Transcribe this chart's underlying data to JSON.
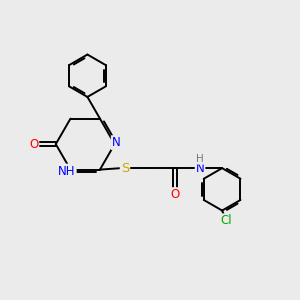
{
  "background_color": "#ebebeb",
  "bond_color": "#000000",
  "atom_colors": {
    "N": "#0000ff",
    "O": "#ff0000",
    "S": "#ccaa00",
    "Cl": "#00aa00",
    "H": "#777777"
  }
}
